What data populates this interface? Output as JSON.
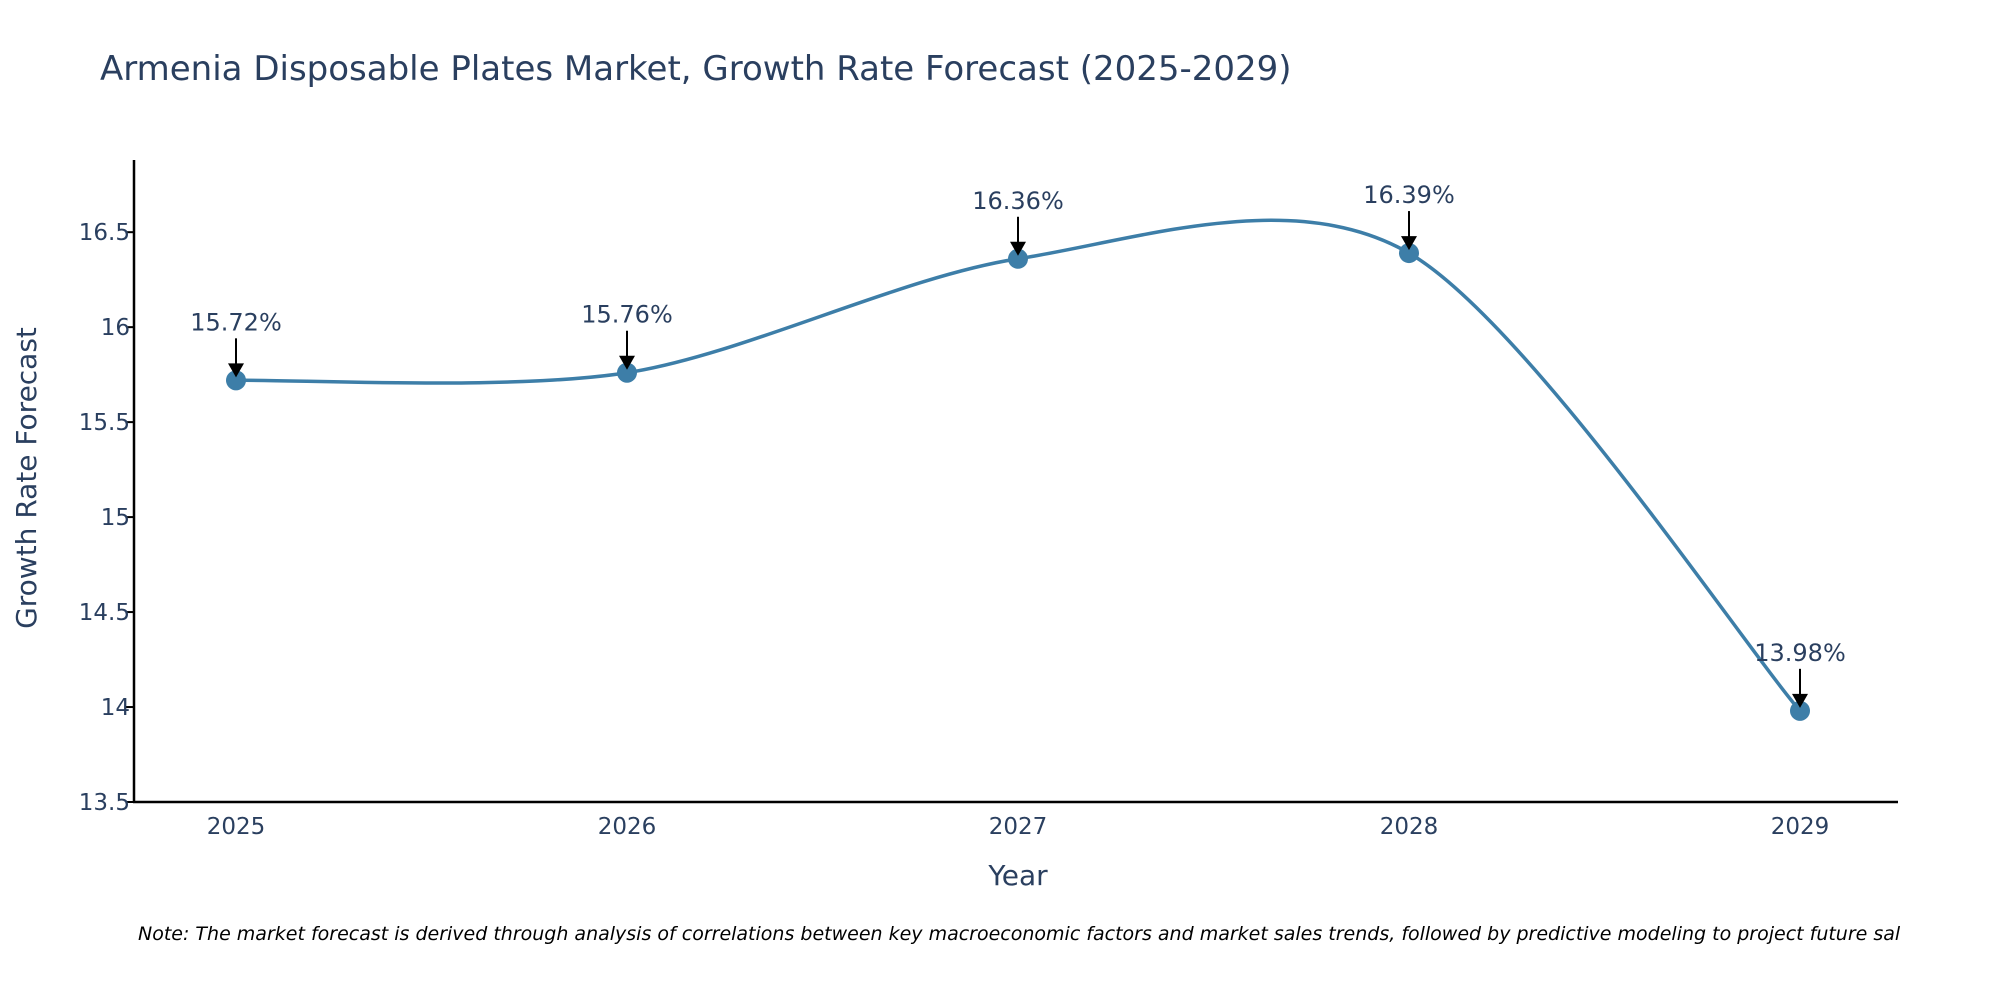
{
  "chart_data": {
    "type": "line",
    "title": "Armenia Disposable Plates Market, Growth Rate Forecast (2025-2029)",
    "xlabel": "Year",
    "ylabel": "Growth Rate Forecast",
    "categories": [
      "2025",
      "2026",
      "2027",
      "2028",
      "2029"
    ],
    "values": [
      15.72,
      15.76,
      16.36,
      16.39,
      13.98
    ],
    "data_labels": [
      "15.72%",
      "15.76%",
      "16.36%",
      "16.39%",
      "13.98%"
    ],
    "ylim": [
      13.5,
      16.88
    ],
    "yticks": [
      13.5,
      14,
      14.5,
      15,
      15.5,
      16,
      16.5
    ],
    "ytick_labels": [
      "13.5",
      "14",
      "14.5",
      "15",
      "15.5",
      "16",
      "16.5"
    ],
    "line_shape": "spline",
    "grid": false,
    "legend": "none",
    "colors": {
      "line": "#3d7ea8",
      "marker": "#3d7ea8",
      "axis": "#000000",
      "text": "#2a3f5f",
      "arrow": "#000000"
    },
    "note": "Note: The market forecast is derived through analysis of correlations between key macroeconomic factors and market sales trends, followed by predictive modeling to project future sal"
  }
}
